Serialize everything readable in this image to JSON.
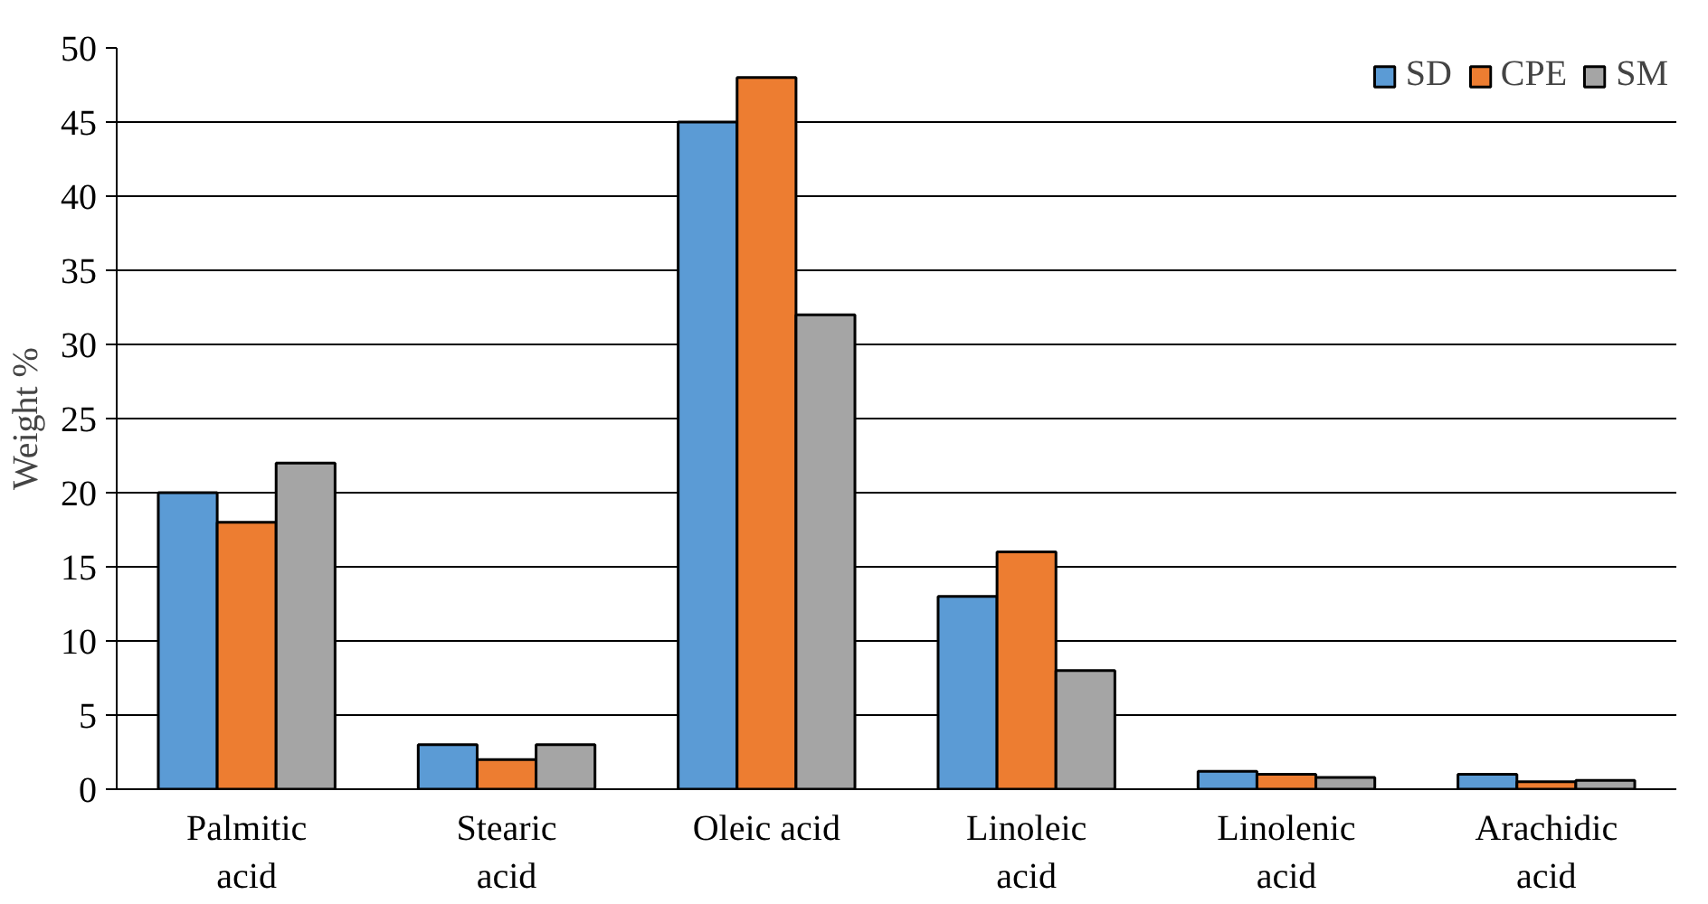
{
  "chart_data": {
    "type": "bar",
    "ylabel": "Weight %",
    "categories": [
      "Palmitic acid",
      "Stearic acid",
      "Oleic acid",
      "Linoleic acid",
      "Linolenic acid",
      "Arachidic acid"
    ],
    "series": [
      {
        "name": "SD",
        "color": "#5b9bd5",
        "values": [
          20,
          3,
          45,
          13,
          1.2,
          1.0
        ]
      },
      {
        "name": "CPE",
        "color": "#ed7d31",
        "values": [
          18,
          2,
          48,
          16,
          1.0,
          0.5
        ]
      },
      {
        "name": "SM",
        "color": "#a5a5a5",
        "values": [
          22,
          3,
          32,
          8,
          0.8,
          0.6
        ]
      }
    ],
    "ylim": [
      0,
      50
    ],
    "yticks": [
      0,
      5,
      10,
      15,
      20,
      25,
      30,
      35,
      40,
      45,
      50
    ],
    "grid": "y",
    "legend": "top right"
  }
}
